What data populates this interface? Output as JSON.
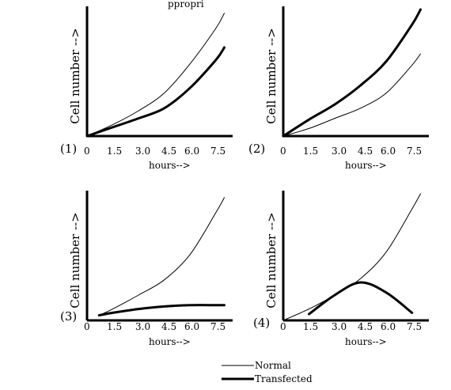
{
  "header": {
    "caption_fragment": "ppropri"
  },
  "legend": {
    "normal_label": "Normal",
    "transfected_label": "Transfected"
  },
  "chart_data": [
    {
      "type": "line",
      "panel_label": "(1)",
      "xlabel": "hours-->",
      "ylabel": "Cell number -->",
      "xticks": [
        "0",
        "1.5",
        "3.0",
        "4.5",
        "6.0",
        "7.5"
      ],
      "xlim": [
        0,
        8.3
      ],
      "ylim": [
        0,
        100
      ],
      "series": [
        {
          "name": "Normal",
          "x": [
            0,
            1.5,
            3.0,
            4.5,
            6.0,
            7.5,
            8.0
          ],
          "y": [
            0,
            9,
            20,
            34,
            57,
            85,
            97
          ]
        },
        {
          "name": "Transfected",
          "x": [
            0,
            1.5,
            3.0,
            4.5,
            6.0,
            7.5,
            8.0
          ],
          "y": [
            0,
            7,
            14,
            22,
            38,
            60,
            70
          ]
        }
      ]
    },
    {
      "type": "line",
      "panel_label": "(2)",
      "xlabel": "hours-->",
      "ylabel": "Cell number -->",
      "xticks": [
        "0",
        "1.5",
        "3.0",
        "4.5",
        "6.0",
        "7.5"
      ],
      "xlim": [
        0,
        8.3
      ],
      "ylim": [
        0,
        100
      ],
      "series": [
        {
          "name": "Normal",
          "x": [
            0,
            1.5,
            3.0,
            4.5,
            6.0,
            7.5,
            8.0
          ],
          "y": [
            0,
            6,
            14,
            22,
            34,
            56,
            65
          ]
        },
        {
          "name": "Transfected",
          "x": [
            0,
            1.5,
            3.0,
            4.5,
            6.0,
            7.5,
            8.0
          ],
          "y": [
            0,
            13,
            25,
            40,
            59,
            88,
            100
          ]
        }
      ]
    },
    {
      "type": "line",
      "panel_label": "(3)",
      "xlabel": "hours-->",
      "ylabel": "Cell number -->",
      "xticks": [
        "0",
        "1.5",
        "3.0",
        "4.5",
        "6.0",
        "7.5"
      ],
      "xlim": [
        0,
        8.3
      ],
      "ylim": [
        0,
        100
      ],
      "series": [
        {
          "name": "Normal",
          "x": [
            0.7,
            1.5,
            3.0,
            4.5,
            6.0,
            7.5,
            8.0
          ],
          "y": [
            4,
            9,
            20,
            32,
            52,
            85,
            97
          ]
        },
        {
          "name": "Transfected",
          "x": [
            0.7,
            1.5,
            3.0,
            4.5,
            6.0,
            7.5,
            8.0
          ],
          "y": [
            4,
            6,
            9,
            11,
            12,
            12,
            12
          ]
        }
      ]
    },
    {
      "type": "line",
      "panel_label": "(4)",
      "xlabel": "hours-->",
      "ylabel": "Cell number -->",
      "xticks": [
        "0",
        "1.5",
        "3.0",
        "4.5",
        "6.0",
        "7.5"
      ],
      "xlim": [
        0,
        8.3
      ],
      "ylim": [
        0,
        100
      ],
      "series": [
        {
          "name": "Normal",
          "x": [
            0,
            1.5,
            3.0,
            4.5,
            6.0,
            7.5,
            8.0
          ],
          "y": [
            0,
            9,
            20,
            33,
            54,
            88,
            100
          ]
        },
        {
          "name": "Transfected",
          "x": [
            1.5,
            3.0,
            4.5,
            6.0,
            7.5
          ],
          "y": [
            5,
            20,
            30,
            22,
            6
          ]
        }
      ]
    }
  ]
}
